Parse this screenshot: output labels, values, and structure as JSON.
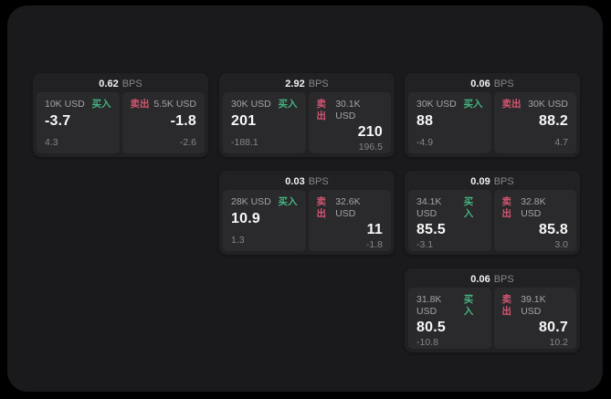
{
  "colors": {
    "buy": "#44b47e",
    "sell": "#d45570"
  },
  "labels": {
    "unit": "BPS",
    "buy": "买入",
    "sell": "卖出"
  },
  "cards": [
    {
      "bps": "0.62",
      "buy": {
        "size": "10K USD",
        "price": "-3.7",
        "delta": "4.3"
      },
      "sell": {
        "size": "5.5K USD",
        "price": "-1.8",
        "delta": "-2.6"
      }
    },
    {
      "bps": "2.92",
      "buy": {
        "size": "30K USD",
        "price": "201",
        "delta": "-188.1"
      },
      "sell": {
        "size": "30.1K USD",
        "price": "210",
        "delta": "196.5"
      }
    },
    {
      "bps": "0.06",
      "buy": {
        "size": "30K USD",
        "price": "88",
        "delta": "-4.9"
      },
      "sell": {
        "size": "30K USD",
        "price": "88.2",
        "delta": "4.7"
      }
    },
    {
      "bps": "0.03",
      "buy": {
        "size": "28K USD",
        "price": "10.9",
        "delta": "1.3"
      },
      "sell": {
        "size": "32.6K USD",
        "price": "11",
        "delta": "-1.8"
      }
    },
    {
      "bps": "0.09",
      "buy": {
        "size": "34.1K USD",
        "price": "85.5",
        "delta": "-3.1"
      },
      "sell": {
        "size": "32.8K USD",
        "price": "85.8",
        "delta": "3.0"
      }
    },
    {
      "bps": "0.06",
      "buy": {
        "size": "31.8K USD",
        "price": "80.5",
        "delta": "-10.8"
      },
      "sell": {
        "size": "39.1K USD",
        "price": "80.7",
        "delta": "10.2"
      }
    }
  ]
}
